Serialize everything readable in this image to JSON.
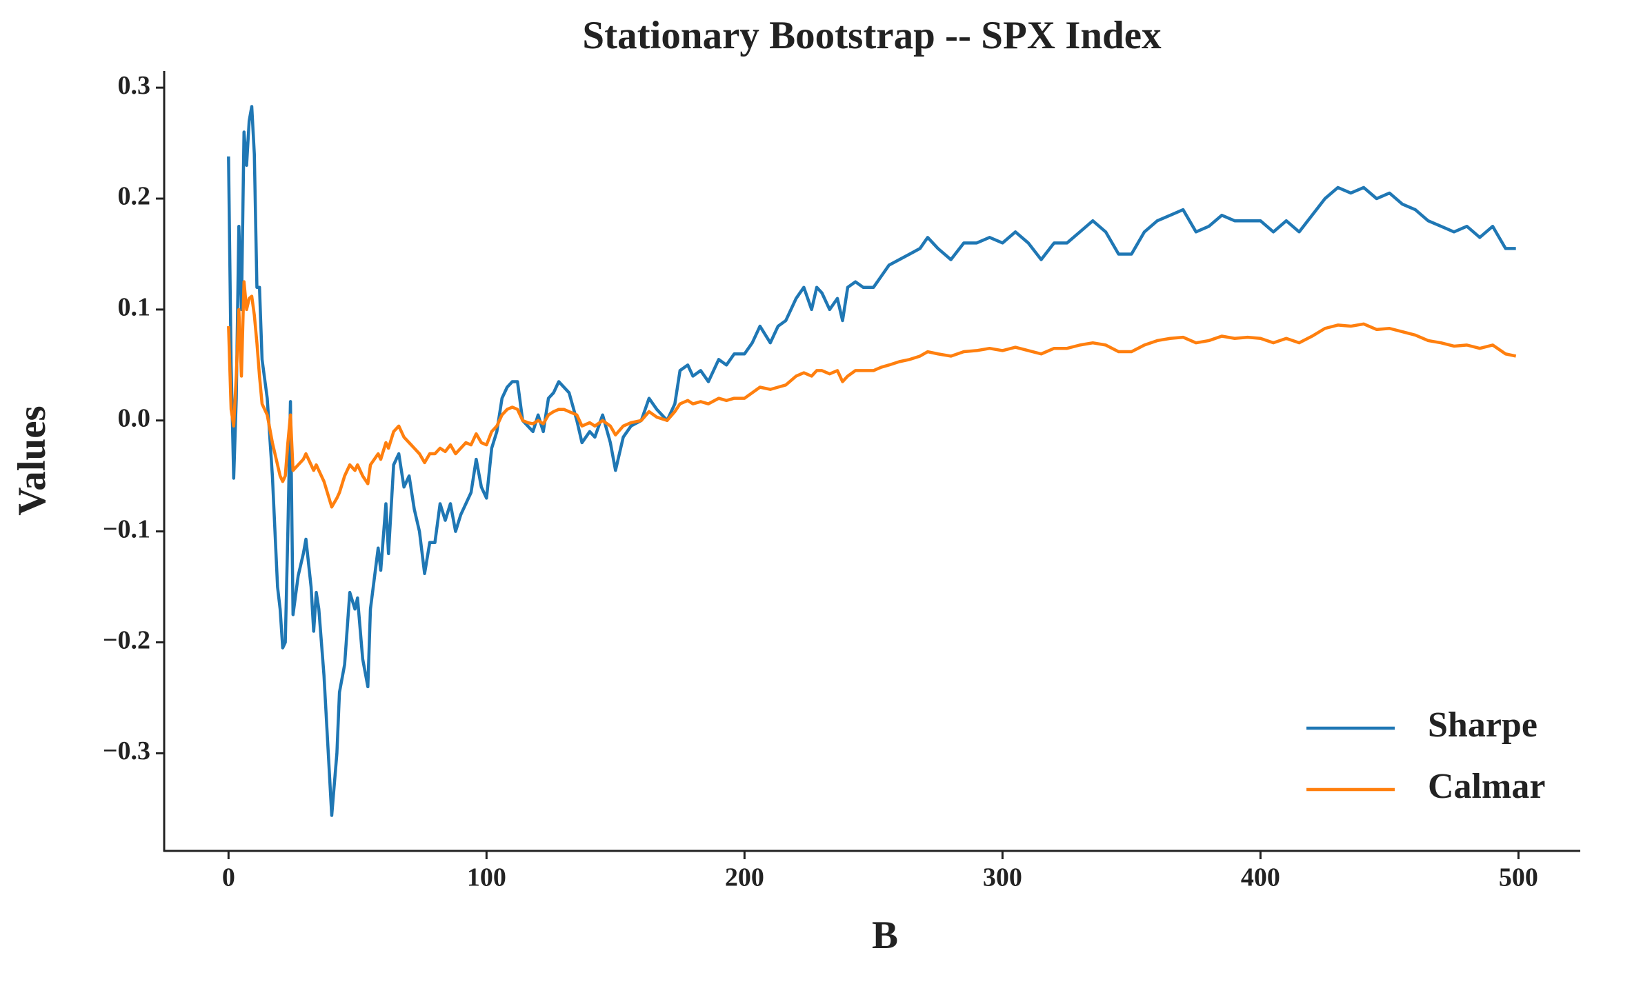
{
  "chart_data": {
    "type": "line",
    "title": "Stationary Bootstrap -- SPX Index",
    "x_label": "B",
    "y_label": "Values",
    "x": [
      0,
      1,
      2,
      3,
      4,
      5,
      6,
      7,
      8,
      9,
      10,
      11,
      12,
      13,
      15,
      17,
      19,
      20,
      21,
      22,
      23,
      24,
      25,
      27,
      29,
      30,
      32,
      33,
      34,
      35,
      37,
      40,
      42,
      43,
      45,
      47,
      49,
      50,
      52,
      54,
      55,
      58,
      59,
      61,
      62,
      64,
      66,
      68,
      70,
      72,
      74,
      76,
      78,
      80,
      82,
      84,
      86,
      88,
      90,
      92,
      94,
      96,
      98,
      100,
      102,
      104,
      106,
      108,
      110,
      112,
      114,
      116,
      118,
      120,
      122,
      124,
      126,
      128,
      130,
      132,
      135,
      137,
      140,
      142,
      145,
      148,
      150,
      153,
      156,
      160,
      163,
      166,
      170,
      173,
      175,
      178,
      180,
      183,
      186,
      190,
      193,
      196,
      200,
      203,
      206,
      210,
      213,
      216,
      220,
      223,
      226,
      228,
      230,
      233,
      236,
      238,
      240,
      243,
      246,
      250,
      253,
      256,
      260,
      264,
      268,
      271,
      275,
      280,
      285,
      290,
      295,
      300,
      305,
      310,
      315,
      320,
      325,
      330,
      335,
      340,
      345,
      350,
      355,
      360,
      365,
      370,
      375,
      380,
      385,
      390,
      395,
      400,
      405,
      410,
      415,
      420,
      425,
      430,
      435,
      440,
      445,
      450,
      455,
      460,
      465,
      470,
      475,
      480,
      485,
      490,
      495,
      499
    ],
    "series": [
      {
        "name": "Sharpe",
        "color": "#1f77b4",
        "values": [
          0.238,
          0.05,
          -0.052,
          0.02,
          0.175,
          0.1,
          0.26,
          0.23,
          0.27,
          0.283,
          0.24,
          0.12,
          0.12,
          0.055,
          0.02,
          -0.05,
          -0.15,
          -0.17,
          -0.205,
          -0.2,
          -0.1,
          0.017,
          -0.175,
          -0.14,
          -0.12,
          -0.107,
          -0.15,
          -0.19,
          -0.155,
          -0.17,
          -0.23,
          -0.356,
          -0.3,
          -0.245,
          -0.22,
          -0.155,
          -0.17,
          -0.16,
          -0.215,
          -0.24,
          -0.17,
          -0.115,
          -0.135,
          -0.075,
          -0.12,
          -0.04,
          -0.03,
          -0.06,
          -0.05,
          -0.08,
          -0.1,
          -0.138,
          -0.11,
          -0.11,
          -0.075,
          -0.09,
          -0.075,
          -0.1,
          -0.085,
          -0.075,
          -0.065,
          -0.035,
          -0.06,
          -0.07,
          -0.025,
          -0.01,
          0.02,
          0.03,
          0.035,
          0.035,
          0.0,
          -0.005,
          -0.01,
          0.005,
          -0.01,
          0.02,
          0.025,
          0.035,
          0.03,
          0.025,
          0.0,
          -0.02,
          -0.01,
          -0.015,
          0.005,
          -0.02,
          -0.045,
          -0.015,
          -0.005,
          0.0,
          0.02,
          0.01,
          0.0,
          0.015,
          0.045,
          0.05,
          0.04,
          0.045,
          0.035,
          0.055,
          0.05,
          0.06,
          0.06,
          0.07,
          0.085,
          0.07,
          0.085,
          0.09,
          0.11,
          0.12,
          0.1,
          0.12,
          0.115,
          0.1,
          0.11,
          0.09,
          0.12,
          0.125,
          0.12,
          0.12,
          0.13,
          0.14,
          0.145,
          0.15,
          0.155,
          0.165,
          0.155,
          0.145,
          0.16,
          0.16,
          0.165,
          0.16,
          0.17,
          0.16,
          0.145,
          0.16,
          0.16,
          0.17,
          0.18,
          0.17,
          0.15,
          0.15,
          0.17,
          0.18,
          0.185,
          0.19,
          0.17,
          0.175,
          0.185,
          0.18,
          0.18,
          0.18,
          0.17,
          0.18,
          0.17,
          0.185,
          0.2,
          0.21,
          0.205,
          0.21,
          0.2,
          0.205,
          0.195,
          0.19,
          0.18,
          0.175,
          0.17,
          0.175,
          0.165,
          0.175,
          0.155,
          0.155
        ]
      },
      {
        "name": "Calmar",
        "color": "#ff7f0e",
        "values": [
          0.085,
          0.01,
          -0.005,
          0.04,
          0.1,
          0.04,
          0.125,
          0.1,
          0.11,
          0.112,
          0.095,
          0.07,
          0.04,
          0.015,
          0.005,
          -0.02,
          -0.04,
          -0.05,
          -0.055,
          -0.05,
          -0.02,
          0.005,
          -0.045,
          -0.04,
          -0.035,
          -0.03,
          -0.04,
          -0.045,
          -0.04,
          -0.045,
          -0.055,
          -0.078,
          -0.07,
          -0.065,
          -0.05,
          -0.04,
          -0.045,
          -0.04,
          -0.05,
          -0.057,
          -0.04,
          -0.03,
          -0.035,
          -0.02,
          -0.025,
          -0.01,
          -0.005,
          -0.015,
          -0.02,
          -0.025,
          -0.03,
          -0.038,
          -0.03,
          -0.03,
          -0.025,
          -0.028,
          -0.022,
          -0.03,
          -0.025,
          -0.02,
          -0.022,
          -0.012,
          -0.02,
          -0.022,
          -0.01,
          -0.005,
          0.005,
          0.01,
          0.012,
          0.01,
          0.0,
          -0.002,
          -0.003,
          0.0,
          -0.003,
          0.005,
          0.008,
          0.01,
          0.01,
          0.008,
          0.005,
          -0.005,
          -0.002,
          -0.005,
          0.0,
          -0.005,
          -0.013,
          -0.005,
          -0.002,
          0.0,
          0.008,
          0.003,
          0.0,
          0.008,
          0.015,
          0.018,
          0.015,
          0.017,
          0.015,
          0.02,
          0.018,
          0.02,
          0.02,
          0.025,
          0.03,
          0.028,
          0.03,
          0.032,
          0.04,
          0.043,
          0.04,
          0.045,
          0.045,
          0.042,
          0.045,
          0.035,
          0.04,
          0.045,
          0.045,
          0.045,
          0.048,
          0.05,
          0.053,
          0.055,
          0.058,
          0.062,
          0.06,
          0.058,
          0.062,
          0.063,
          0.065,
          0.063,
          0.066,
          0.063,
          0.06,
          0.065,
          0.065,
          0.068,
          0.07,
          0.068,
          0.062,
          0.062,
          0.068,
          0.072,
          0.074,
          0.075,
          0.07,
          0.072,
          0.076,
          0.074,
          0.075,
          0.074,
          0.07,
          0.074,
          0.07,
          0.076,
          0.083,
          0.086,
          0.085,
          0.087,
          0.082,
          0.083,
          0.08,
          0.077,
          0.072,
          0.07,
          0.067,
          0.068,
          0.065,
          0.068,
          0.06,
          0.058
        ]
      }
    ],
    "xlim": [
      -24.95,
      523.95
    ],
    "ylim": [
      -0.388,
      0.315
    ],
    "xticks": [
      0,
      100,
      200,
      300,
      400,
      500
    ],
    "yticks": [
      {
        "value": -0.3,
        "label": "−0.3"
      },
      {
        "value": -0.2,
        "label": "−0.2"
      },
      {
        "value": -0.1,
        "label": "−0.1"
      },
      {
        "value": 0.0,
        "label": "0.0"
      },
      0.1,
      0.2,
      0.3
    ],
    "grid": false,
    "legend": "lower right"
  }
}
